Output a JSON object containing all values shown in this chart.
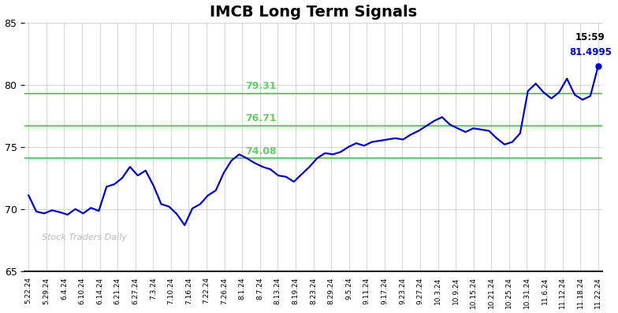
{
  "title": "IMCB Long Term Signals",
  "title_fontsize": 14,
  "background_color": "#ffffff",
  "line_color": "#0000cc",
  "line_width": 1.6,
  "ylim": [
    65,
    85
  ],
  "yticks": [
    65,
    70,
    75,
    80,
    85
  ],
  "horizontal_lines": [
    74.08,
    76.71,
    79.31
  ],
  "hline_color": "#66cc66",
  "hline_labels": [
    "74.08",
    "76.71",
    "79.31"
  ],
  "watermark": "Stock Traders Daily",
  "watermark_color": "#bbbbbb",
  "annotation_time": "15:59",
  "annotation_price": "81.4995",
  "annotation_color_time": "#000000",
  "annotation_color_price": "#0000cc",
  "last_dot_color": "#0000cc",
  "xtick_labels": [
    "5.22.24",
    "5.29.24",
    "6.4.24",
    "6.10.24",
    "6.14.24",
    "6.21.24",
    "6.27.24",
    "7.3.24",
    "7.10.24",
    "7.16.24",
    "7.22.24",
    "7.26.24",
    "8.1.24",
    "8.7.24",
    "8.13.24",
    "8.19.24",
    "8.23.24",
    "8.29.24",
    "9.5.24",
    "9.11.24",
    "9.17.24",
    "9.23.24",
    "9.27.24",
    "10.3.24",
    "10.9.24",
    "10.15.24",
    "10.21.24",
    "10.25.24",
    "10.31.24",
    "11.6.24",
    "11.12.24",
    "11.18.24",
    "11.22.24"
  ],
  "prices": [
    71.1,
    69.8,
    69.65,
    69.9,
    69.75,
    69.55,
    70.0,
    69.65,
    70.1,
    69.85,
    71.8,
    72.0,
    72.5,
    73.4,
    72.7,
    73.1,
    71.9,
    70.4,
    70.2,
    69.6,
    68.7,
    70.05,
    70.4,
    71.1,
    71.5,
    72.9,
    73.9,
    74.4,
    74.08,
    73.7,
    73.4,
    73.2,
    72.7,
    72.6,
    72.2,
    72.8,
    73.4,
    74.1,
    74.5,
    74.4,
    74.6,
    75.0,
    75.3,
    75.1,
    75.4,
    75.5,
    75.6,
    75.7,
    75.6,
    76.0,
    76.3,
    76.7,
    77.1,
    77.4,
    76.8,
    76.5,
    76.2,
    76.5,
    76.4,
    76.3,
    75.7,
    75.2,
    75.4,
    76.1,
    79.5,
    80.1,
    79.4,
    78.9,
    79.4,
    80.5,
    79.2,
    78.8,
    79.1,
    81.4995
  ]
}
